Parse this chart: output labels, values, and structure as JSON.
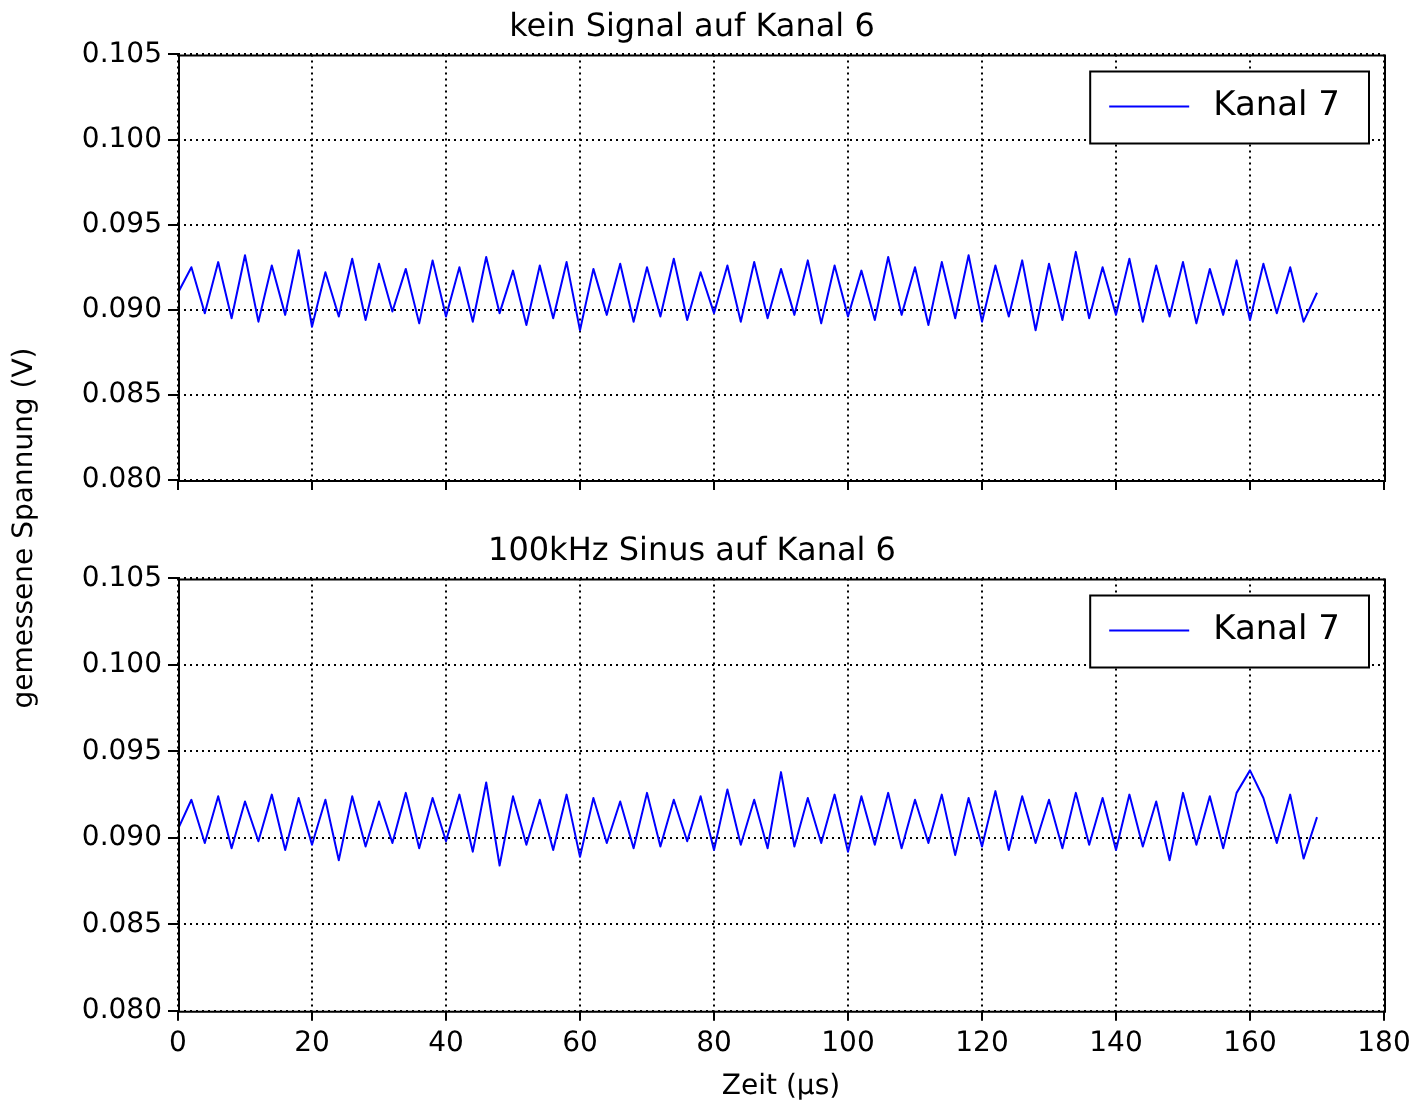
{
  "chart_data": [
    {
      "type": "line",
      "title": "kein Signal auf Kanal 6",
      "ylabel": "gemessene Spannung (V)",
      "x": [
        0,
        2,
        4,
        6,
        8,
        10,
        12,
        14,
        16,
        18,
        20,
        22,
        24,
        26,
        28,
        30,
        32,
        34,
        36,
        38,
        40,
        42,
        44,
        46,
        48,
        50,
        52,
        54,
        56,
        58,
        60,
        62,
        64,
        66,
        68,
        70,
        72,
        74,
        76,
        78,
        80,
        82,
        84,
        86,
        88,
        90,
        92,
        94,
        96,
        98,
        100,
        102,
        104,
        106,
        108,
        110,
        112,
        114,
        116,
        118,
        120,
        122,
        124,
        126,
        128,
        130,
        132,
        134,
        136,
        138,
        140,
        142,
        144,
        146,
        148,
        150,
        152,
        154,
        156,
        158,
        160,
        162,
        164,
        166,
        168,
        170
      ],
      "series": [
        {
          "name": "Kanal 7",
          "color": "#0000ff",
          "values": [
            0.091,
            0.0925,
            0.0898,
            0.0928,
            0.0895,
            0.0932,
            0.0893,
            0.0926,
            0.0897,
            0.0935,
            0.089,
            0.0922,
            0.0896,
            0.093,
            0.0894,
            0.0927,
            0.0899,
            0.0924,
            0.0892,
            0.0929,
            0.0896,
            0.0925,
            0.0893,
            0.0931,
            0.0898,
            0.0923,
            0.0891,
            0.0926,
            0.0895,
            0.0928,
            0.0888,
            0.0924,
            0.0897,
            0.0927,
            0.0893,
            0.0925,
            0.0896,
            0.093,
            0.0894,
            0.0922,
            0.0898,
            0.0926,
            0.0893,
            0.0928,
            0.0895,
            0.0924,
            0.0897,
            0.0929,
            0.0892,
            0.0926,
            0.0896,
            0.0923,
            0.0894,
            0.0931,
            0.0897,
            0.0925,
            0.0891,
            0.0928,
            0.0895,
            0.0932,
            0.0893,
            0.0926,
            0.0896,
            0.0929,
            0.0888,
            0.0927,
            0.0894,
            0.0934,
            0.0895,
            0.0925,
            0.0897,
            0.093,
            0.0893,
            0.0926,
            0.0896,
            0.0928,
            0.0892,
            0.0924,
            0.0897,
            0.0929,
            0.0894,
            0.0927,
            0.0898,
            0.0925,
            0.0893,
            0.091
          ]
        }
      ],
      "xlim": [
        0,
        180
      ],
      "xticks": [
        0,
        20,
        40,
        60,
        80,
        100,
        120,
        140,
        160,
        180
      ],
      "ylim": [
        0.08,
        0.105
      ],
      "yticks": [
        {
          "value": 0.08,
          "label": "0.080"
        },
        {
          "value": 0.085,
          "label": "0.085"
        },
        {
          "value": 0.09,
          "label": "0.090"
        },
        {
          "value": 0.095,
          "label": "0.095"
        },
        {
          "value": 0.1,
          "label": "0.100"
        },
        {
          "value": 0.105,
          "label": "0.105"
        }
      ],
      "tick_labels": "y",
      "grid": true,
      "legend": "top right",
      "marker": "none",
      "line_style": "solid"
    },
    {
      "type": "line",
      "title": "100kHz Sinus auf Kanal 6",
      "xlabel": "Zeit (μs)",
      "x": [
        0,
        2,
        4,
        6,
        8,
        10,
        12,
        14,
        16,
        18,
        20,
        22,
        24,
        26,
        28,
        30,
        32,
        34,
        36,
        38,
        40,
        42,
        44,
        46,
        48,
        50,
        52,
        54,
        56,
        58,
        60,
        62,
        64,
        66,
        68,
        70,
        72,
        74,
        76,
        78,
        80,
        82,
        84,
        86,
        88,
        90,
        92,
        94,
        96,
        98,
        100,
        102,
        104,
        106,
        108,
        110,
        112,
        114,
        116,
        118,
        120,
        122,
        124,
        126,
        128,
        130,
        132,
        134,
        136,
        138,
        140,
        142,
        144,
        146,
        148,
        150,
        152,
        154,
        156,
        158,
        160,
        162,
        164,
        166,
        168,
        170
      ],
      "series": [
        {
          "name": "Kanal 7",
          "color": "#0000ff",
          "values": [
            0.0905,
            0.0922,
            0.0897,
            0.0924,
            0.0894,
            0.0921,
            0.0898,
            0.0925,
            0.0893,
            0.0923,
            0.0896,
            0.0922,
            0.0887,
            0.0924,
            0.0895,
            0.0921,
            0.0897,
            0.0926,
            0.0894,
            0.0923,
            0.0898,
            0.0925,
            0.0892,
            0.0932,
            0.0884,
            0.0924,
            0.0896,
            0.0922,
            0.0893,
            0.0925,
            0.0889,
            0.0923,
            0.0897,
            0.0921,
            0.0894,
            0.0926,
            0.0895,
            0.0922,
            0.0898,
            0.0924,
            0.0893,
            0.0928,
            0.0896,
            0.0922,
            0.0894,
            0.0938,
            0.0895,
            0.0923,
            0.0897,
            0.0925,
            0.0892,
            0.0924,
            0.0896,
            0.0926,
            0.0894,
            0.0922,
            0.0897,
            0.0925,
            0.089,
            0.0923,
            0.0895,
            0.0927,
            0.0893,
            0.0924,
            0.0897,
            0.0922,
            0.0894,
            0.0926,
            0.0896,
            0.0923,
            0.0893,
            0.0925,
            0.0895,
            0.0921,
            0.0887,
            0.0926,
            0.0896,
            0.0924,
            0.0894,
            0.0926,
            0.0939,
            0.0923,
            0.0897,
            0.0925,
            0.0888,
            0.0912
          ]
        }
      ],
      "xlim": [
        0,
        180
      ],
      "xticks": [
        0,
        20,
        40,
        60,
        80,
        100,
        120,
        140,
        160,
        180
      ],
      "ylim": [
        0.08,
        0.105
      ],
      "yticks": [
        {
          "value": 0.08,
          "label": "0.080"
        },
        {
          "value": 0.085,
          "label": "0.085"
        },
        {
          "value": 0.09,
          "label": "0.090"
        },
        {
          "value": 0.095,
          "label": "0.095"
        },
        {
          "value": 0.1,
          "label": "0.100"
        },
        {
          "value": 0.105,
          "label": "0.105"
        }
      ],
      "grid": true,
      "legend": "top right",
      "marker": "none",
      "line_style": "solid"
    }
  ]
}
